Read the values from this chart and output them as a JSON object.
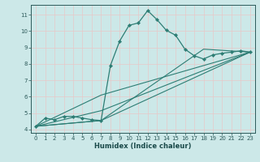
{
  "xlabel": "Humidex (Indice chaleur)",
  "bg_color": "#cce8e8",
  "line_color": "#2d7d74",
  "grid_color": "#b8d8d8",
  "xlim": [
    -0.5,
    23.5
  ],
  "ylim": [
    3.8,
    11.6
  ],
  "yticks": [
    4,
    5,
    6,
    7,
    8,
    9,
    10,
    11
  ],
  "xticks": [
    0,
    1,
    2,
    3,
    4,
    5,
    6,
    7,
    8,
    9,
    10,
    11,
    12,
    13,
    14,
    15,
    16,
    17,
    18,
    19,
    20,
    21,
    22,
    23
  ],
  "line1_x": [
    0,
    1,
    2,
    3,
    4,
    5,
    6,
    7,
    8,
    9,
    10,
    11,
    12,
    13,
    14,
    15,
    16,
    17,
    18,
    19,
    20,
    21,
    22,
    23
  ],
  "line1_y": [
    4.2,
    4.7,
    4.6,
    4.8,
    4.8,
    4.7,
    4.6,
    4.55,
    7.9,
    9.4,
    10.35,
    10.5,
    11.25,
    10.7,
    10.05,
    9.75,
    8.9,
    8.5,
    8.3,
    8.55,
    8.65,
    8.72,
    8.8,
    8.72
  ],
  "line2_x": [
    0,
    7,
    23
  ],
  "line2_y": [
    4.2,
    4.55,
    8.72
  ],
  "line3_x": [
    0,
    7,
    23
  ],
  "line3_y": [
    4.2,
    5.15,
    8.72
  ],
  "line4_x": [
    0,
    7,
    23
  ],
  "line4_y": [
    4.2,
    6.1,
    8.72
  ],
  "line5_x": [
    0,
    7,
    18,
    23
  ],
  "line5_y": [
    4.2,
    4.55,
    8.9,
    8.72
  ]
}
